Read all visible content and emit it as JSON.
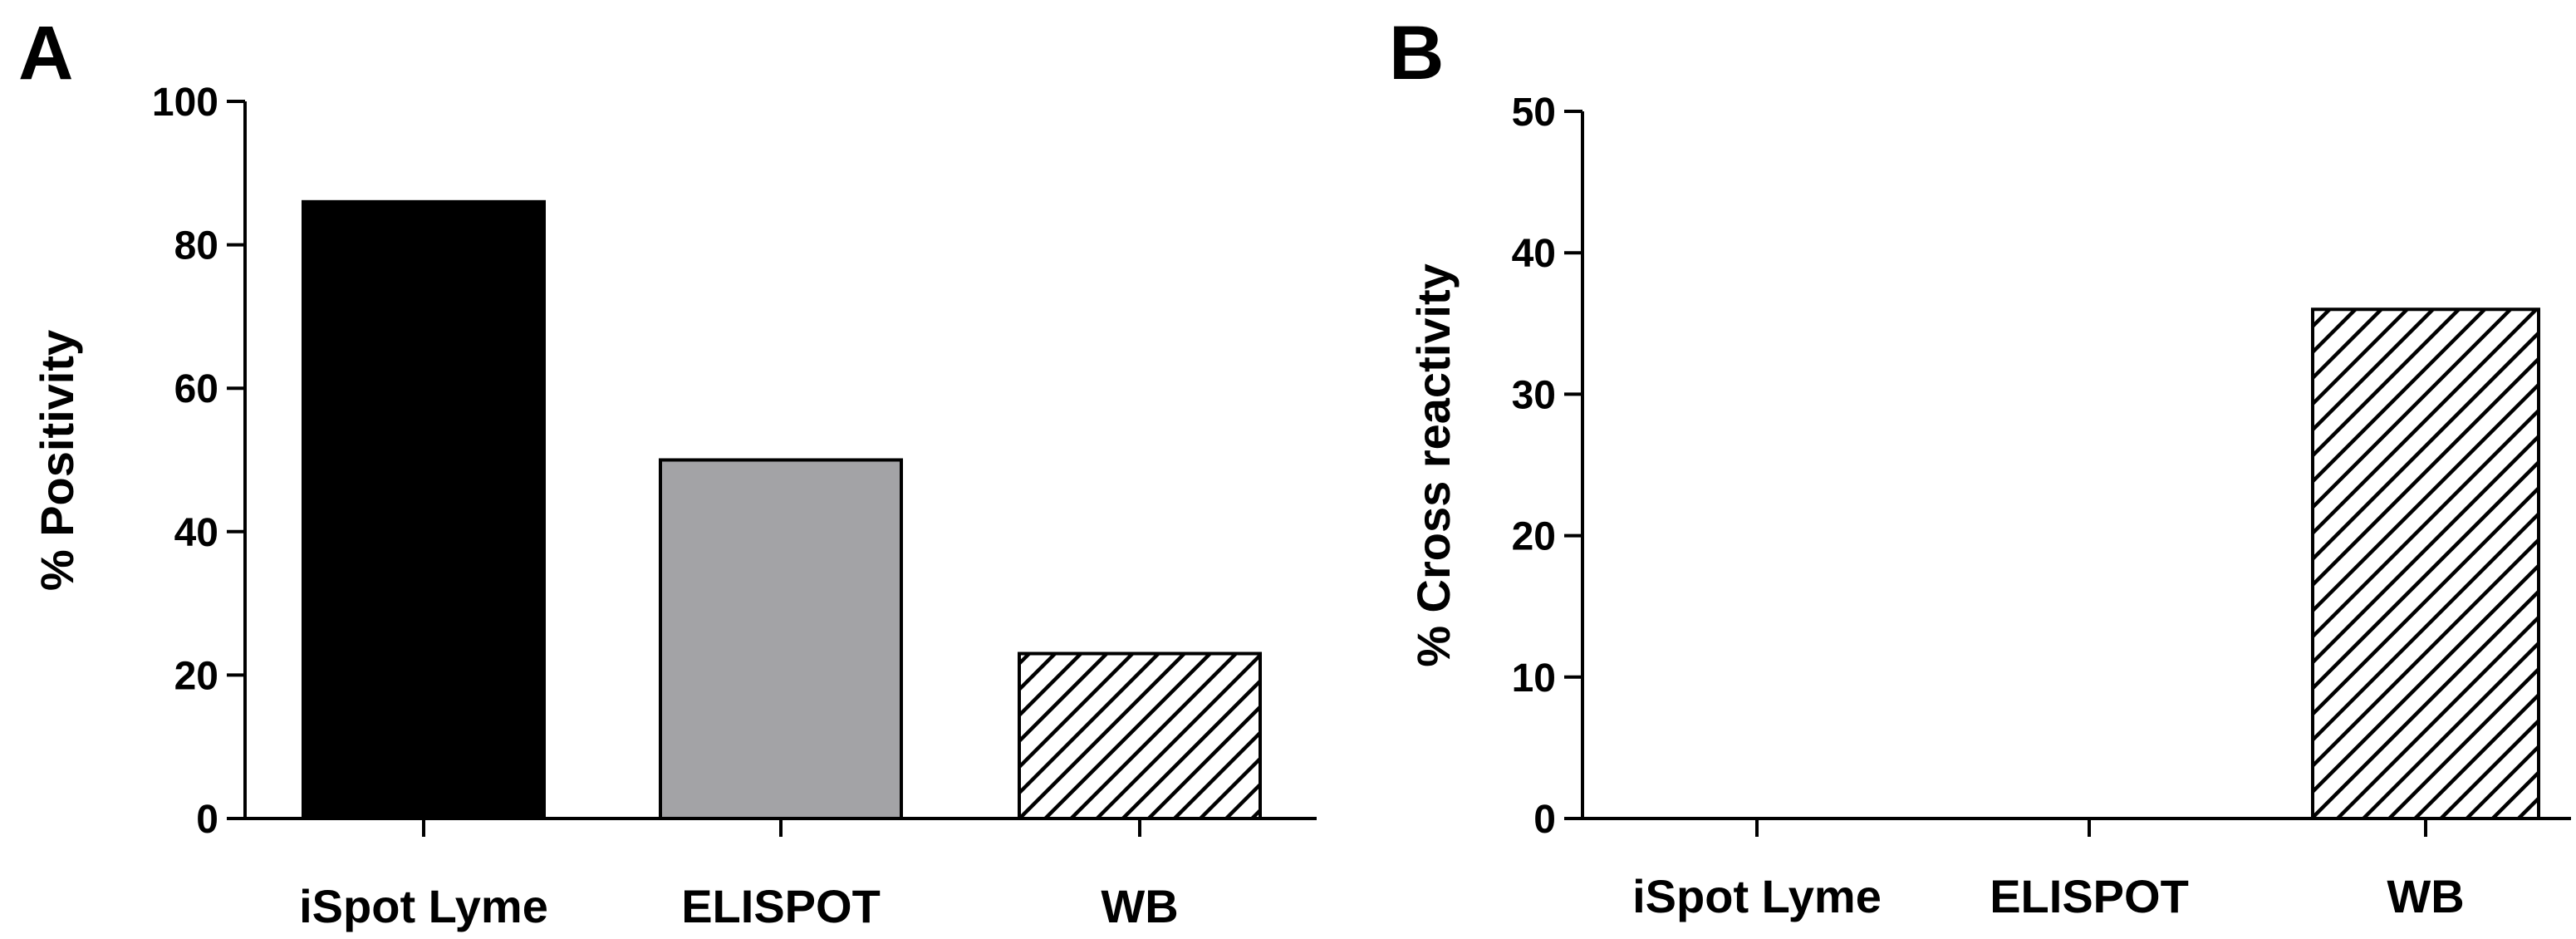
{
  "chart_data": [
    {
      "panel": "A",
      "type": "bar",
      "categories": [
        "iSpot Lyme",
        "ELISPOT",
        "WB"
      ],
      "values": [
        86,
        50,
        23
      ],
      "fills": [
        "solid-black",
        "solid-gray",
        "hatched"
      ],
      "colors": [
        "#000000",
        "#a3a3a6",
        "#ffffff"
      ],
      "ylabel": "% Positivity",
      "ylim": [
        0,
        100
      ],
      "yticks": [
        0,
        20,
        40,
        60,
        80,
        100
      ],
      "grid": false
    },
    {
      "panel": "B",
      "type": "bar",
      "categories": [
        "iSpot Lyme",
        "ELISPOT",
        "WB"
      ],
      "values": [
        0,
        0,
        36
      ],
      "fills": [
        "solid-black",
        "solid-gray",
        "hatched"
      ],
      "colors": [
        "#000000",
        "#a3a3a6",
        "#ffffff"
      ],
      "ylabel": "% Cross reactivity",
      "ylim": [
        0,
        50
      ],
      "yticks": [
        0,
        10,
        20,
        30,
        40,
        50
      ],
      "grid": false
    }
  ]
}
